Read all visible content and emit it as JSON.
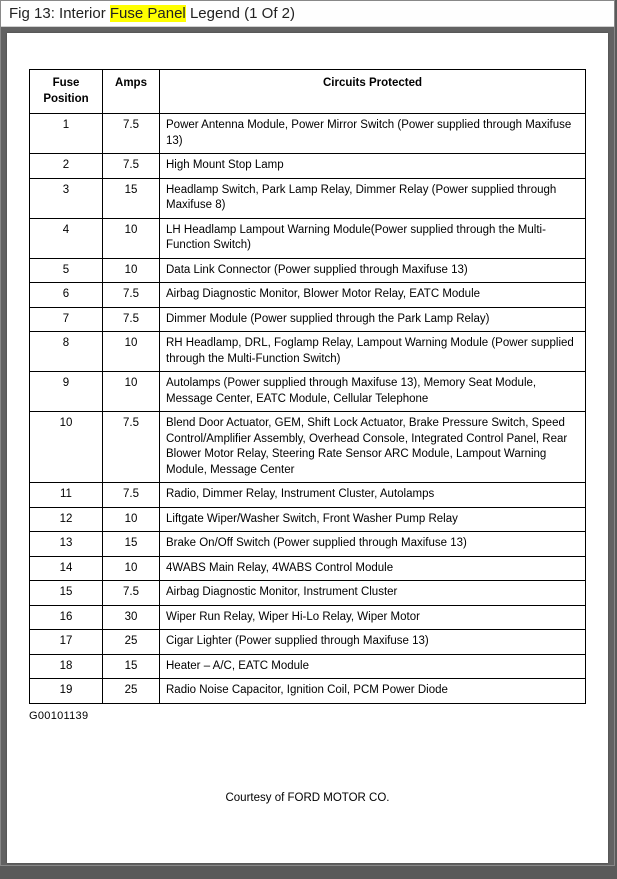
{
  "caption": {
    "prefix": "Fig 13: Interior ",
    "highlight": "Fuse Panel",
    "suffix": " Legend (1 Of 2)"
  },
  "table": {
    "headers": {
      "position": "Fuse Position",
      "amps": "Amps",
      "circuits": "Circuits Protected"
    },
    "rows": [
      {
        "pos": "1",
        "amps": "7.5",
        "circ": "Power Antenna Module, Power Mirror Switch (Power supplied through Maxifuse 13)"
      },
      {
        "pos": "2",
        "amps": "7.5",
        "circ": "High Mount Stop Lamp"
      },
      {
        "pos": "3",
        "amps": "15",
        "circ": "Headlamp Switch, Park Lamp Relay, Dimmer Relay (Power supplied through Maxifuse 8)"
      },
      {
        "pos": "4",
        "amps": "10",
        "circ": "LH Headlamp Lampout Warning Module(Power supplied through the Multi-Function Switch)"
      },
      {
        "pos": "5",
        "amps": "10",
        "circ": "Data Link Connector (Power supplied through Maxifuse 13)"
      },
      {
        "pos": "6",
        "amps": "7.5",
        "circ": "Airbag Diagnostic Monitor, Blower Motor Relay, EATC Module"
      },
      {
        "pos": "7",
        "amps": "7.5",
        "circ": "Dimmer Module (Power supplied through the Park Lamp Relay)"
      },
      {
        "pos": "8",
        "amps": "10",
        "circ": "RH Headlamp, DRL, Foglamp Relay, Lampout Warning Module (Power supplied through the Multi-Function Switch)"
      },
      {
        "pos": "9",
        "amps": "10",
        "circ": "Autolamps (Power supplied through Maxifuse 13), Memory Seat Module, Message Center, EATC Module, Cellular Telephone"
      },
      {
        "pos": "10",
        "amps": "7.5",
        "circ": "Blend Door Actuator, GEM, Shift Lock Actuator, Brake Pressure Switch, Speed Control/Amplifier Assembly, Overhead Console, Integrated Control Panel, Rear Blower Motor Relay, Steering Rate Sensor ARC Module, Lampout Warning Module, Message Center"
      },
      {
        "pos": "11",
        "amps": "7.5",
        "circ": "Radio, Dimmer Relay, Instrument Cluster, Autolamps"
      },
      {
        "pos": "12",
        "amps": "10",
        "circ": "Liftgate Wiper/Washer Switch, Front Washer Pump Relay"
      },
      {
        "pos": "13",
        "amps": "15",
        "circ": "Brake On/Off Switch (Power supplied through Maxifuse 13)"
      },
      {
        "pos": "14",
        "amps": "10",
        "circ": "4WABS Main Relay, 4WABS Control Module"
      },
      {
        "pos": "15",
        "amps": "7.5",
        "circ": "Airbag Diagnostic Monitor, Instrument Cluster"
      },
      {
        "pos": "16",
        "amps": "30",
        "circ": "Wiper Run Relay, Wiper Hi-Lo Relay, Wiper Motor"
      },
      {
        "pos": "17",
        "amps": "25",
        "circ": "Cigar Lighter (Power supplied through Maxifuse 13)"
      },
      {
        "pos": "18",
        "amps": "15",
        "circ": "Heater – A/C, EATC Module"
      },
      {
        "pos": "19",
        "amps": "25",
        "circ": "Radio Noise Capacitor, Ignition Coil, PCM Power Diode"
      }
    ]
  },
  "refnum": "G00101139",
  "courtesy": "Courtesy of FORD MOTOR CO."
}
